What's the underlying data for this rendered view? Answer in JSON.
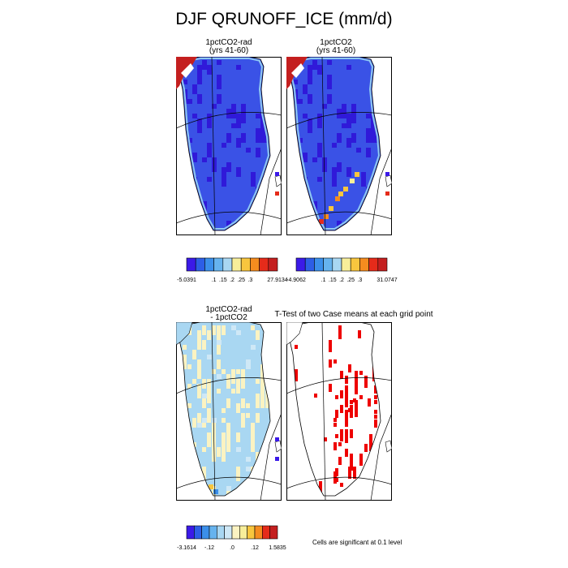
{
  "title": "DJF QRUNOFF_ICE (mm/d)",
  "chart_data": [
    {
      "type": "heatmap",
      "title": "1pctCO2-rad",
      "subtitle": "(yrs 41-60)",
      "colorbar": {
        "colors": [
          "#3b1ae8",
          "#2d5ee6",
          "#3b8fea",
          "#66b3ee",
          "#a9d7f2",
          "#f7ee9a",
          "#f8c63e",
          "#f58c1f",
          "#e52b1a",
          "#c41f1f"
        ],
        "labels": [
          "-5.0391",
          ".1",
          ".15",
          ".2",
          ".25",
          ".3",
          "27.9134"
        ],
        "label_at": [
          0,
          3,
          4,
          5,
          6,
          7,
          10
        ]
      }
    },
    {
      "type": "heatmap",
      "title": "1pctCO2",
      "subtitle": "(yrs 41-60)",
      "colorbar": {
        "colors": [
          "#3b1ae8",
          "#2d5ee6",
          "#3b8fea",
          "#66b3ee",
          "#a9d7f2",
          "#f7ee9a",
          "#f8c63e",
          "#f58c1f",
          "#e52b1a",
          "#c41f1f"
        ],
        "labels": [
          "-4.9062",
          ".1",
          ".15",
          ".2",
          ".25",
          ".3",
          "31.0747"
        ],
        "label_at": [
          0,
          3,
          4,
          5,
          6,
          7,
          10
        ]
      }
    },
    {
      "type": "heatmap",
      "title": "1pctCO2-rad",
      "subtitle": "- 1pctCO2",
      "colorbar": {
        "colors": [
          "#3b1ae8",
          "#2d5ee6",
          "#3b8fea",
          "#66b3ee",
          "#a9d7f2",
          "#cfe8f6",
          "#fbf3c2",
          "#f7ee9a",
          "#f8c63e",
          "#f58c1f",
          "#e52b1a",
          "#c41f1f"
        ],
        "labels": [
          "-3.1614",
          "-.12",
          ".0",
          ".12",
          "1.5835"
        ],
        "label_at": [
          0,
          3,
          6,
          9,
          12
        ]
      }
    },
    {
      "type": "heatmap",
      "title": "T-Test of two Case means at each grid point",
      "note": "Cells are significant at 0.1 level",
      "cell_color": "#ee0000"
    }
  ]
}
